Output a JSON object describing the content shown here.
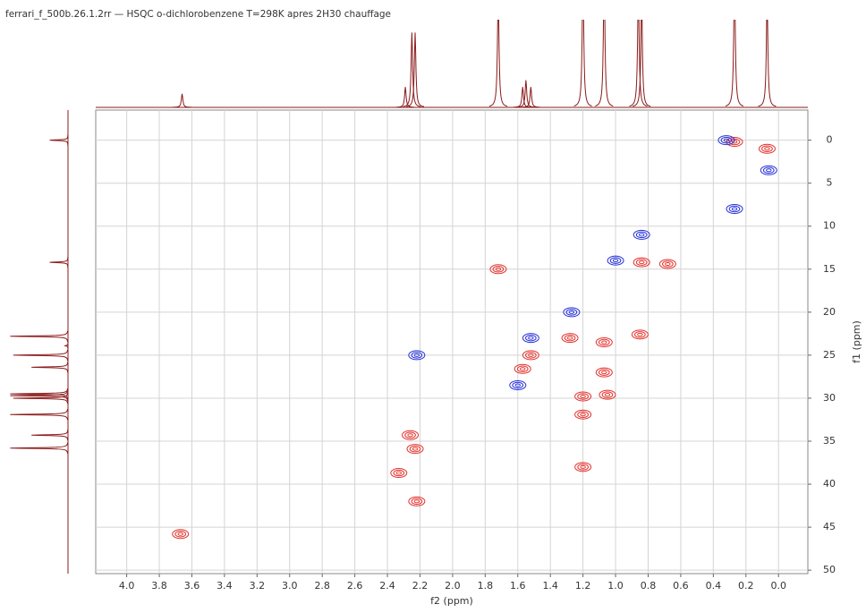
{
  "chart_data": {
    "type": "hsqc",
    "title": "ferrari_f_500b.26.1.2rr — HSQC o-dichlorobenzene  T=298K apres 2H30 chauffage",
    "x_label": "f2 (ppm)",
    "y_label": "f1 (ppm)",
    "xlim": [
      4.19,
      -0.18
    ],
    "ylim": [
      -3.5,
      50.4
    ],
    "xticks": [
      {
        "value": 4,
        "label": "4.0"
      },
      3.8,
      3.6,
      3.4,
      3.2,
      {
        "value": 3,
        "label": "3.0"
      },
      2.8,
      2.6,
      2.4,
      2.2,
      {
        "value": 2,
        "label": "2.0"
      },
      1.8,
      1.6,
      1.4,
      1.2,
      {
        "value": 1,
        "label": "1.0"
      },
      0.8,
      0.6,
      0.4,
      0.2,
      {
        "value": 0,
        "label": "0.0"
      }
    ],
    "yticks": [
      0,
      5,
      10,
      15,
      20,
      25,
      30,
      35,
      40,
      45,
      50
    ],
    "grid": true,
    "series": [
      {
        "color": "#e3302a",
        "x": [
          0.27,
          0.07,
          0.84,
          0.68,
          1.72,
          1.57,
          1.52,
          1.28,
          1.07,
          1.2,
          1.2,
          1.05,
          0.85,
          2.26,
          2.23,
          2.33,
          2.22,
          3.67,
          1.2,
          1.07
        ],
        "values": [
          0.2,
          1.0,
          14.2,
          14.4,
          15.0,
          26.6,
          25.0,
          23.0,
          23.5,
          29.8,
          31.9,
          29.6,
          22.6,
          34.3,
          35.9,
          38.7,
          42.0,
          45.8,
          38.0,
          27.0
        ]
      },
      {
        "color": "#2630d8",
        "x": [
          0.32,
          0.27,
          0.84,
          1.27,
          1.0,
          2.22,
          1.52,
          1.6,
          0.06
        ],
        "values": [
          0.0,
          8.0,
          11.0,
          20.0,
          14.0,
          25.0,
          23.0,
          28.5,
          3.5
        ]
      }
    ],
    "top_projection": {
      "color": "#8b1a1a",
      "x": [
        3.66,
        2.29,
        2.25,
        2.23,
        1.72,
        1.57,
        1.55,
        1.52,
        1.2,
        1.07,
        0.86,
        0.84,
        0.27,
        0.07
      ],
      "values": [
        0.1,
        0.15,
        0.55,
        0.55,
        0.85,
        0.15,
        0.2,
        0.15,
        1.0,
        1.0,
        0.9,
        0.8,
        1.0,
        0.8
      ]
    },
    "left_projection": {
      "color": "#8b1a1a",
      "x": [
        0.0,
        14.2,
        22.8,
        23.9,
        25.0,
        26.4,
        29.5,
        29.7,
        30.0,
        31.9,
        34.3,
        35.8
      ],
      "values": [
        0.3,
        0.3,
        0.95,
        0.05,
        0.9,
        0.6,
        0.95,
        0.95,
        0.9,
        0.95,
        0.6,
        0.95
      ]
    }
  }
}
